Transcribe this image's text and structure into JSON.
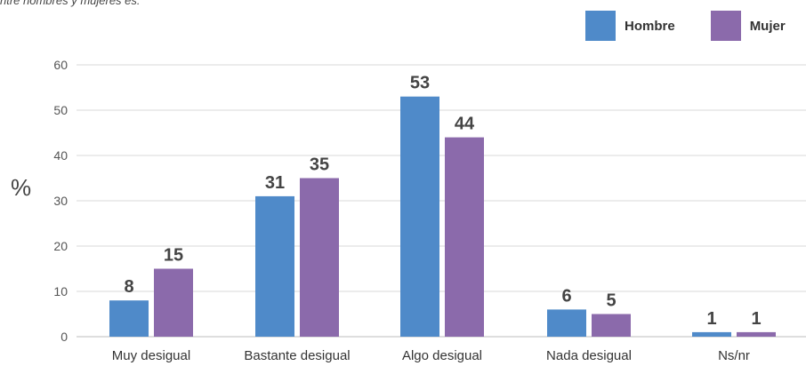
{
  "top_note": "ntre hombres y mujeres es:",
  "legend": {
    "items": [
      {
        "label": "Hombre",
        "color": "#4f8ac9"
      },
      {
        "label": "Mujer",
        "color": "#8b6aab"
      }
    ]
  },
  "chart_data": {
    "type": "bar",
    "title": "",
    "xlabel": "",
    "ylabel": "%",
    "ylim": [
      0,
      60
    ],
    "yticks": [
      0,
      10,
      20,
      30,
      40,
      50,
      60
    ],
    "grid": true,
    "legend_position": "top-right",
    "categories": [
      "Muy desigual",
      "Bastante desigual",
      "Algo desigual",
      "Nada desigual",
      "Ns/nr"
    ],
    "series": [
      {
        "name": "Hombre",
        "color": "#4f8ac9",
        "values": [
          8,
          31,
          53,
          6,
          1
        ]
      },
      {
        "name": "Mujer",
        "color": "#8b6aab",
        "values": [
          15,
          35,
          44,
          5,
          1
        ]
      }
    ]
  }
}
